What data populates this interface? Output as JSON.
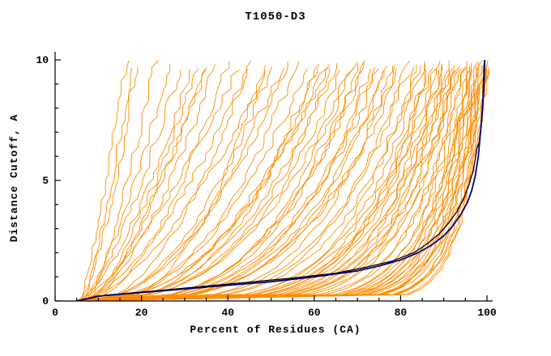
{
  "chart_data": {
    "type": "line",
    "title": "T1050-D3",
    "xlabel": "Percent of Residues (CA)",
    "ylabel": "Distance Cutoff, A",
    "xlim": [
      0,
      100
    ],
    "ylim": [
      0,
      10
    ],
    "x_major_ticks": [
      0,
      20,
      40,
      60,
      80,
      100
    ],
    "x_minor_tick_step": 5,
    "y_major_ticks": [
      0,
      5,
      10
    ],
    "y_minor_tick_step": 1,
    "grid": false,
    "legend": "none",
    "colors": {
      "model_lines": "#ff8c00",
      "best_model_line": "#000080",
      "reference_line": "#000000",
      "axis": "#000000",
      "background": "#ffffff"
    },
    "jitter_seed": 20211206,
    "orange_model_curves": {
      "params_format": [
        "x_at_cutoff0",
        "x_at_cutoff10",
        "shape_exponent"
      ],
      "params": [
        [
          6,
          16,
          0.85
        ],
        [
          7,
          18,
          0.9
        ],
        [
          6,
          19,
          0.75
        ],
        [
          8,
          23,
          0.8
        ],
        [
          6,
          26,
          0.7
        ],
        [
          7,
          29,
          0.8
        ],
        [
          5,
          31,
          0.65
        ],
        [
          8,
          33,
          0.75
        ],
        [
          6,
          34,
          0.6
        ],
        [
          10,
          35,
          0.85
        ],
        [
          6,
          37,
          0.6
        ],
        [
          7,
          40,
          0.55
        ],
        [
          5,
          42,
          0.7
        ],
        [
          8,
          44,
          0.5
        ],
        [
          6,
          46,
          0.65
        ],
        [
          12,
          48,
          0.45
        ],
        [
          5,
          49,
          0.6
        ],
        [
          8,
          50,
          0.5
        ],
        [
          6,
          52,
          0.45
        ],
        [
          7,
          54,
          0.5
        ],
        [
          5,
          56,
          0.4
        ],
        [
          8,
          58,
          0.45
        ],
        [
          6,
          60,
          0.35
        ],
        [
          14,
          61,
          0.5
        ],
        [
          5,
          62,
          0.4
        ],
        [
          8,
          63,
          0.45
        ],
        [
          6,
          64,
          0.35
        ],
        [
          7,
          65,
          0.4
        ],
        [
          5,
          66,
          0.35
        ],
        [
          6,
          68,
          0.3
        ],
        [
          7,
          69,
          0.38
        ],
        [
          8,
          70,
          0.33
        ],
        [
          5,
          71,
          0.3
        ],
        [
          10,
          72,
          0.36
        ],
        [
          7,
          73,
          0.28
        ],
        [
          8,
          74,
          0.32
        ],
        [
          5,
          75,
          0.3
        ],
        [
          6,
          76,
          0.27
        ],
        [
          7,
          77,
          0.3
        ],
        [
          8,
          78,
          0.25
        ],
        [
          5,
          79,
          0.28
        ],
        [
          6,
          80,
          0.3
        ],
        [
          5,
          81,
          0.22
        ],
        [
          6,
          82,
          0.25
        ],
        [
          7,
          83,
          0.2
        ],
        [
          8,
          84,
          0.24
        ],
        [
          5,
          85,
          0.2
        ],
        [
          12,
          86,
          0.22
        ],
        [
          7,
          86.5,
          0.18
        ],
        [
          8,
          87,
          0.2
        ],
        [
          5,
          88,
          0.18
        ],
        [
          6,
          88.5,
          0.2
        ],
        [
          7,
          89,
          0.17
        ],
        [
          8,
          89.5,
          0.19
        ],
        [
          5,
          90,
          0.16
        ],
        [
          6,
          90.5,
          0.18
        ],
        [
          7,
          91,
          0.15
        ],
        [
          8,
          91.5,
          0.17
        ],
        [
          5,
          92,
          0.15
        ],
        [
          6,
          92.3,
          0.16
        ],
        [
          7,
          92.6,
          0.14
        ],
        [
          8,
          93,
          0.15
        ],
        [
          5,
          93.5,
          0.12
        ],
        [
          6,
          94,
          0.13
        ],
        [
          7,
          94.5,
          0.11
        ],
        [
          8,
          95,
          0.12
        ],
        [
          5,
          95.3,
          0.1
        ],
        [
          6,
          95.6,
          0.11
        ],
        [
          7,
          96,
          0.1
        ],
        [
          8,
          96.3,
          0.11
        ],
        [
          5,
          96.6,
          0.09
        ],
        [
          6,
          97,
          0.1
        ],
        [
          7,
          97.2,
          0.09
        ],
        [
          8,
          97.5,
          0.1
        ],
        [
          5,
          97.8,
          0.08
        ],
        [
          6,
          98,
          0.09
        ],
        [
          7,
          98.2,
          0.08
        ],
        [
          8,
          98.4,
          0.09
        ],
        [
          5,
          98.6,
          0.08
        ],
        [
          6,
          98.8,
          0.08
        ],
        [
          7,
          99,
          0.07
        ],
        [
          8,
          99.2,
          0.08
        ],
        [
          5,
          99.4,
          0.07
        ],
        [
          6,
          99.5,
          0.07
        ],
        [
          7,
          99.6,
          0.06
        ],
        [
          8,
          99.7,
          0.07
        ],
        [
          5,
          99.8,
          0.06
        ]
      ]
    },
    "highlight_curves": [
      {
        "name": "reference-black",
        "color": "#000000",
        "width": 1.3,
        "points": [
          [
            5,
            0
          ],
          [
            12,
            0.25
          ],
          [
            25,
            0.45
          ],
          [
            40,
            0.7
          ],
          [
            55,
            0.95
          ],
          [
            65,
            1.15
          ],
          [
            72,
            1.4
          ],
          [
            78,
            1.65
          ],
          [
            83,
            2.0
          ],
          [
            86,
            2.35
          ],
          [
            89,
            2.8
          ],
          [
            91,
            3.2
          ],
          [
            93,
            3.7
          ],
          [
            94.5,
            4.2
          ],
          [
            95.8,
            4.8
          ],
          [
            96.8,
            5.4
          ],
          [
            97.3,
            5.9
          ],
          [
            97.6,
            6.3
          ],
          [
            98.3,
            6.6
          ],
          [
            98.6,
            7.2
          ],
          [
            99,
            8.2
          ],
          [
            99.2,
            9.2
          ],
          [
            99.4,
            10
          ]
        ]
      },
      {
        "name": "best-model-navy",
        "color": "#000080",
        "width": 1.8,
        "points": [
          [
            5,
            0
          ],
          [
            10,
            0.2
          ],
          [
            20,
            0.35
          ],
          [
            30,
            0.5
          ],
          [
            40,
            0.65
          ],
          [
            50,
            0.8
          ],
          [
            60,
            1.0
          ],
          [
            70,
            1.25
          ],
          [
            75,
            1.45
          ],
          [
            80,
            1.7
          ],
          [
            84,
            2.0
          ],
          [
            87,
            2.3
          ],
          [
            90,
            2.7
          ],
          [
            92,
            3.1
          ],
          [
            94,
            3.6
          ],
          [
            95.5,
            4.1
          ],
          [
            96.5,
            4.6
          ],
          [
            97.3,
            5.2
          ],
          [
            98,
            6.0
          ],
          [
            98.5,
            7.0
          ],
          [
            99,
            8.0
          ],
          [
            99.3,
            9.0
          ],
          [
            99.5,
            10
          ]
        ]
      }
    ]
  }
}
